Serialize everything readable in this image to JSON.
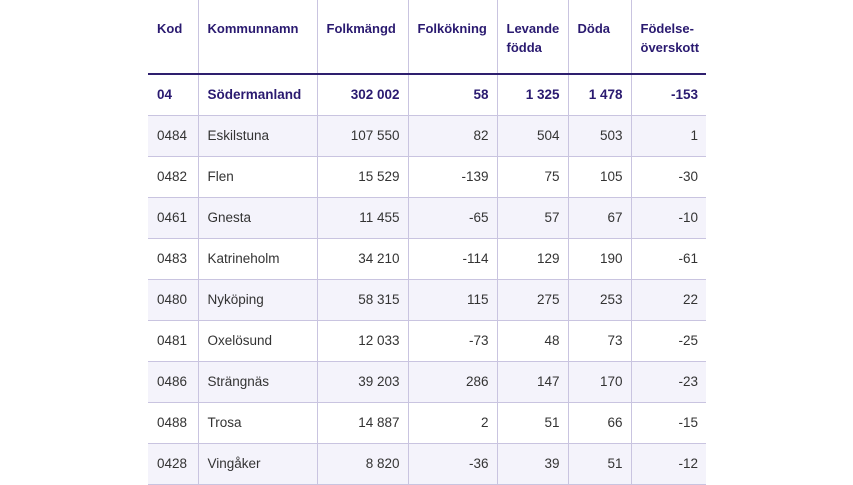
{
  "table": {
    "headers": {
      "kod": "Kod",
      "kommunnamn": "Kommunnamn",
      "folkmangd": "Folkmängd",
      "folkokning": "Folkökning",
      "levande_fodda": "Levande födda",
      "doda": "Döda",
      "fodelseoverskott": "Födelse-överskott"
    },
    "total": {
      "kod": "04",
      "namn": "Södermanland",
      "folkmangd": "302 002",
      "folkokning": "58",
      "levande_fodda": "1 325",
      "doda": "1 478",
      "fodelseoverskott": "-153"
    },
    "rows": [
      {
        "kod": "0484",
        "namn": "Eskilstuna",
        "folkmangd": "107 550",
        "folkokning": "82",
        "levande_fodda": "504",
        "doda": "503",
        "fodelseoverskott": "1"
      },
      {
        "kod": "0482",
        "namn": "Flen",
        "folkmangd": "15 529",
        "folkokning": "-139",
        "levande_fodda": "75",
        "doda": "105",
        "fodelseoverskott": "-30"
      },
      {
        "kod": "0461",
        "namn": "Gnesta",
        "folkmangd": "11 455",
        "folkokning": "-65",
        "levande_fodda": "57",
        "doda": "67",
        "fodelseoverskott": "-10"
      },
      {
        "kod": "0483",
        "namn": "Katrineholm",
        "folkmangd": "34 210",
        "folkokning": "-114",
        "levande_fodda": "129",
        "doda": "190",
        "fodelseoverskott": "-61"
      },
      {
        "kod": "0480",
        "namn": "Nyköping",
        "folkmangd": "58 315",
        "folkokning": "115",
        "levande_fodda": "275",
        "doda": "253",
        "fodelseoverskott": "22"
      },
      {
        "kod": "0481",
        "namn": "Oxelösund",
        "folkmangd": "12 033",
        "folkokning": "-73",
        "levande_fodda": "48",
        "doda": "73",
        "fodelseoverskott": "-25"
      },
      {
        "kod": "0486",
        "namn": "Strängnäs",
        "folkmangd": "39 203",
        "folkokning": "286",
        "levande_fodda": "147",
        "doda": "170",
        "fodelseoverskott": "-23"
      },
      {
        "kod": "0488",
        "namn": "Trosa",
        "folkmangd": "14 887",
        "folkokning": "2",
        "levande_fodda": "51",
        "doda": "66",
        "fodelseoverskott": "-15"
      },
      {
        "kod": "0428",
        "namn": "Vingåker",
        "folkmangd": "8 820",
        "folkokning": "-36",
        "levande_fodda": "39",
        "doda": "51",
        "fodelseoverskott": "-12"
      }
    ]
  }
}
